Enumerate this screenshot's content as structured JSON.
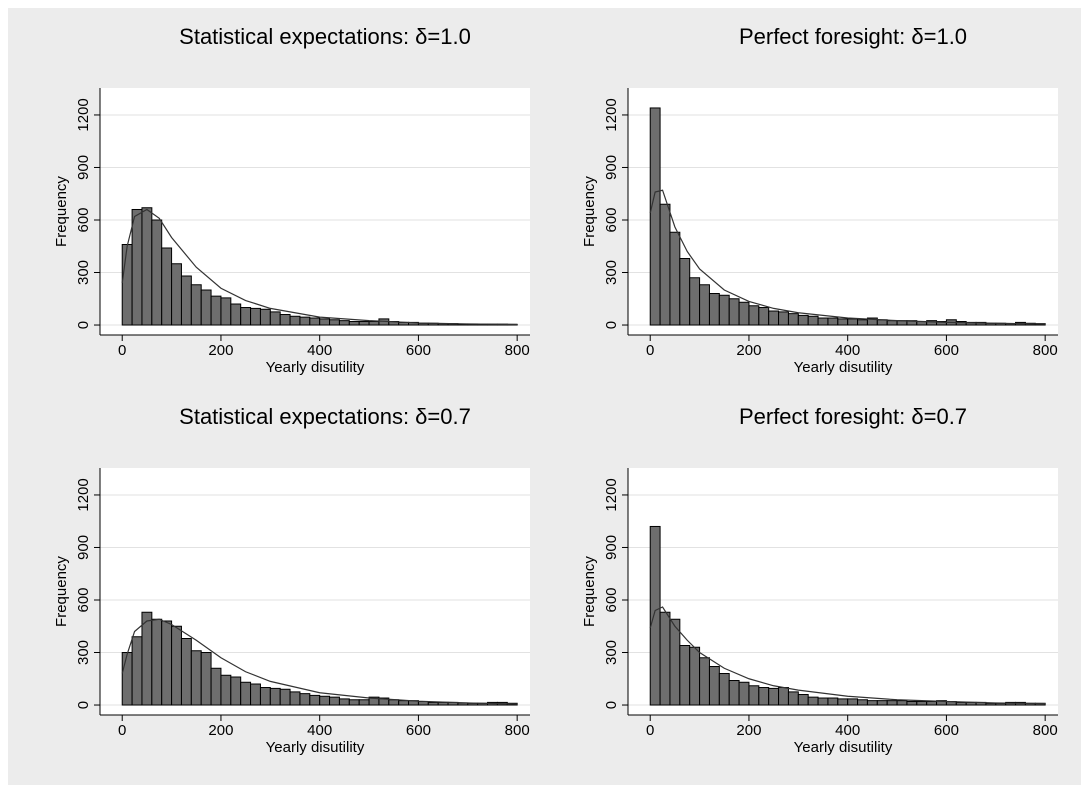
{
  "chart_data": [
    {
      "type": "histogram",
      "title": "Statistical expectations: δ=1.0",
      "xlabel": "Yearly disutility",
      "ylabel": "Frequency",
      "bins": [
        0,
        20,
        40,
        60,
        80,
        100,
        120,
        140,
        160,
        180,
        200,
        220,
        240,
        260,
        280,
        300,
        320,
        340,
        360,
        380,
        400,
        420,
        440,
        460,
        480,
        500,
        520,
        540,
        560,
        580,
        600,
        620,
        640,
        660,
        680,
        700,
        720,
        740,
        760,
        780,
        800
      ],
      "values": [
        460,
        660,
        670,
        600,
        440,
        350,
        280,
        230,
        200,
        165,
        155,
        120,
        100,
        95,
        90,
        75,
        60,
        50,
        45,
        40,
        35,
        30,
        25,
        20,
        20,
        20,
        35,
        20,
        15,
        15,
        10,
        10,
        8,
        8,
        6,
        6,
        5,
        5,
        5,
        4
      ],
      "color": "#6e6e6e",
      "density": {
        "x": [
          0,
          10,
          25,
          50,
          75,
          100,
          150,
          200,
          250,
          300,
          400,
          500,
          600,
          700,
          800
        ],
        "values": [
          240,
          450,
          620,
          660,
          610,
          500,
          330,
          210,
          140,
          95,
          45,
          25,
          12,
          6,
          3
        ]
      },
      "xlim": [
        -45,
        826
      ],
      "ylim": [
        -57,
        1354
      ],
      "xticks": [
        0,
        200,
        400,
        600,
        800
      ],
      "yticks": [
        0,
        300,
        600,
        900,
        1200
      ],
      "grid": true
    },
    {
      "type": "histogram",
      "title": "Perfect foresight: δ=1.0",
      "xlabel": "Yearly disutility",
      "ylabel": "Frequency",
      "bins": [
        0,
        20,
        40,
        60,
        80,
        100,
        120,
        140,
        160,
        180,
        200,
        220,
        240,
        260,
        280,
        300,
        320,
        340,
        360,
        380,
        400,
        420,
        440,
        460,
        480,
        500,
        520,
        540,
        560,
        580,
        600,
        620,
        640,
        660,
        680,
        700,
        720,
        740,
        760,
        780,
        800
      ],
      "values": [
        1240,
        690,
        530,
        380,
        270,
        230,
        180,
        170,
        150,
        130,
        110,
        100,
        80,
        75,
        65,
        55,
        50,
        40,
        40,
        35,
        35,
        30,
        40,
        30,
        25,
        25,
        25,
        20,
        25,
        20,
        30,
        20,
        15,
        15,
        10,
        10,
        8,
        15,
        10,
        8
      ],
      "color": "#6e6e6e",
      "density": {
        "x": [
          0,
          10,
          25,
          50,
          75,
          100,
          150,
          200,
          250,
          300,
          400,
          500,
          600,
          700,
          800
        ],
        "values": [
          640,
          760,
          770,
          560,
          420,
          320,
          200,
          135,
          95,
          70,
          40,
          25,
          15,
          10,
          6
        ]
      },
      "xlim": [
        -45,
        826
      ],
      "ylim": [
        -57,
        1354
      ],
      "xticks": [
        0,
        200,
        400,
        600,
        800
      ],
      "yticks": [
        0,
        300,
        600,
        900,
        1200
      ],
      "grid": true
    },
    {
      "type": "histogram",
      "title": "Statistical expectations: δ=0.7",
      "xlabel": "Yearly disutility",
      "ylabel": "Frequency",
      "bins": [
        0,
        20,
        40,
        60,
        80,
        100,
        120,
        140,
        160,
        180,
        200,
        220,
        240,
        260,
        280,
        300,
        320,
        340,
        360,
        380,
        400,
        420,
        440,
        460,
        480,
        500,
        520,
        540,
        560,
        580,
        600,
        620,
        640,
        660,
        680,
        700,
        720,
        740,
        760,
        780,
        800
      ],
      "values": [
        300,
        390,
        530,
        490,
        480,
        450,
        380,
        310,
        300,
        210,
        170,
        160,
        130,
        120,
        100,
        95,
        90,
        75,
        65,
        55,
        50,
        45,
        35,
        30,
        30,
        45,
        40,
        30,
        25,
        25,
        20,
        15,
        15,
        15,
        12,
        10,
        10,
        15,
        15,
        10
      ],
      "color": "#6e6e6e",
      "density": {
        "x": [
          0,
          10,
          25,
          50,
          75,
          100,
          150,
          200,
          250,
          300,
          400,
          500,
          600,
          700,
          800
        ],
        "values": [
          180,
          290,
          420,
          480,
          490,
          460,
          370,
          270,
          190,
          135,
          70,
          40,
          22,
          12,
          6
        ]
      },
      "xlim": [
        -45,
        826
      ],
      "ylim": [
        -57,
        1354
      ],
      "xticks": [
        0,
        200,
        400,
        600,
        800
      ],
      "yticks": [
        0,
        300,
        600,
        900,
        1200
      ],
      "grid": true
    },
    {
      "type": "histogram",
      "title": "Perfect foresight: δ=0.7",
      "xlabel": "Yearly disutility",
      "ylabel": "Frequency",
      "bins": [
        0,
        20,
        40,
        60,
        80,
        100,
        120,
        140,
        160,
        180,
        200,
        220,
        240,
        260,
        280,
        300,
        320,
        340,
        360,
        380,
        400,
        420,
        440,
        460,
        480,
        500,
        520,
        540,
        560,
        580,
        600,
        620,
        640,
        660,
        680,
        700,
        720,
        740,
        760,
        780,
        800
      ],
      "values": [
        1020,
        530,
        490,
        340,
        330,
        270,
        220,
        180,
        140,
        130,
        110,
        100,
        95,
        100,
        75,
        60,
        45,
        40,
        40,
        35,
        35,
        30,
        25,
        25,
        25,
        25,
        20,
        20,
        20,
        25,
        20,
        15,
        15,
        15,
        10,
        10,
        15,
        15,
        10,
        10
      ],
      "color": "#6e6e6e",
      "density": {
        "x": [
          0,
          10,
          25,
          50,
          75,
          100,
          150,
          200,
          250,
          300,
          400,
          500,
          600,
          700,
          800
        ],
        "values": [
          440,
          540,
          560,
          450,
          370,
          300,
          210,
          150,
          110,
          85,
          50,
          30,
          20,
          12,
          8
        ]
      },
      "xlim": [
        -45,
        826
      ],
      "ylim": [
        -57,
        1354
      ],
      "xticks": [
        0,
        200,
        400,
        600,
        800
      ],
      "yticks": [
        0,
        300,
        600,
        900,
        1200
      ],
      "grid": true
    }
  ]
}
